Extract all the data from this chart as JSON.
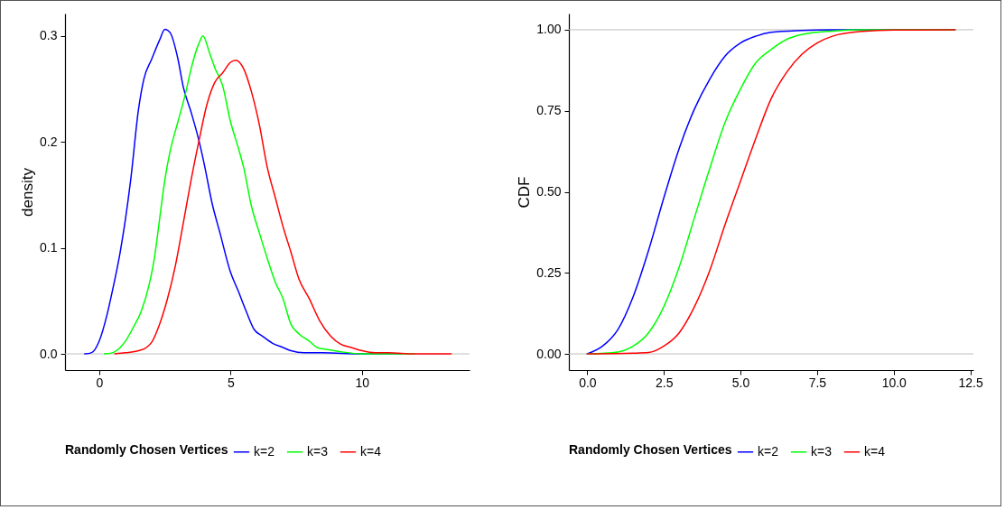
{
  "chart_data": [
    {
      "type": "line",
      "ylabel": "density",
      "legend_title": "Randomly Chosen Vertices",
      "legend": "bottom",
      "grid": false,
      "xlim": [
        -1.3,
        14.1
      ],
      "ylim": [
        -0.0153,
        0.321
      ],
      "xticks": [
        0,
        5,
        10
      ],
      "yticks": [
        {
          "value": 0,
          "label": "0.0"
        },
        0.1,
        0.2,
        0.3
      ],
      "ref_lines": [
        {
          "axis": "y",
          "value": 0,
          "color": "#bebebe"
        }
      ],
      "series": [
        {
          "name": "k=2",
          "color": "#0000ff",
          "x": [
            -0.55,
            -0.3,
            0,
            0.3,
            0.5,
            0.8,
            1.0,
            1.2,
            1.5,
            1.7,
            2.0,
            2.3,
            2.5,
            2.7,
            3.0,
            3.2,
            3.5,
            3.8,
            4.0,
            4.3,
            4.6,
            5.0,
            5.3,
            5.6,
            5.9,
            6.2,
            6.6,
            7.0,
            7.3,
            7.8,
            8.5,
            10,
            11.5
          ],
          "values": [
            0,
            0.001,
            0.012,
            0.037,
            0.059,
            0.096,
            0.127,
            0.164,
            0.231,
            0.259,
            0.278,
            0.296,
            0.306,
            0.303,
            0.278,
            0.252,
            0.228,
            0.201,
            0.179,
            0.142,
            0.114,
            0.077,
            0.059,
            0.04,
            0.023,
            0.017,
            0.01,
            0.006,
            0.003,
            0.001,
            0.001,
            0,
            0
          ]
        },
        {
          "name": "k=3",
          "color": "#00ff00",
          "x": [
            0.2,
            0.5,
            0.8,
            1.0,
            1.3,
            1.6,
            1.9,
            2.1,
            2.3,
            2.5,
            2.7,
            3.0,
            3.3,
            3.5,
            3.8,
            3.95,
            4.2,
            4.4,
            4.7,
            5.0,
            5.3,
            5.5,
            5.8,
            6.1,
            6.4,
            6.7,
            7.0,
            7.3,
            7.6,
            8.0,
            8.3,
            8.7,
            9.2,
            10,
            12
          ],
          "values": [
            0,
            0.001,
            0.006,
            0.012,
            0.025,
            0.04,
            0.065,
            0.09,
            0.127,
            0.164,
            0.191,
            0.219,
            0.247,
            0.269,
            0.293,
            0.3,
            0.284,
            0.27,
            0.253,
            0.219,
            0.194,
            0.176,
            0.139,
            0.114,
            0.09,
            0.068,
            0.052,
            0.028,
            0.019,
            0.012,
            0.006,
            0.004,
            0.002,
            0,
            0
          ]
        },
        {
          "name": "k=4",
          "color": "#ff0000",
          "x": [
            0.6,
            1.0,
            1.5,
            1.8,
            2.0,
            2.3,
            2.6,
            2.9,
            3.2,
            3.5,
            3.8,
            4.1,
            4.4,
            4.7,
            5.0,
            5.2,
            5.5,
            5.8,
            6.1,
            6.4,
            6.7,
            7.0,
            7.3,
            7.6,
            8.0,
            8.4,
            8.8,
            9.2,
            9.6,
            10.0,
            10.5,
            11,
            12,
            13.4
          ],
          "values": [
            0,
            0.001,
            0.003,
            0.006,
            0.011,
            0.028,
            0.052,
            0.083,
            0.123,
            0.164,
            0.201,
            0.235,
            0.256,
            0.265,
            0.275,
            0.277,
            0.269,
            0.247,
            0.216,
            0.176,
            0.148,
            0.12,
            0.096,
            0.071,
            0.052,
            0.031,
            0.017,
            0.009,
            0.006,
            0.003,
            0.001,
            0.001,
            0,
            0
          ]
        }
      ]
    },
    {
      "type": "line",
      "ylabel": "CDF",
      "legend_title": "Randomly Chosen Vertices",
      "legend": "bottom",
      "grid": false,
      "xlim": [
        -0.6,
        12.6
      ],
      "ylim": [
        -0.05,
        1.05
      ],
      "xticks": [
        {
          "value": 0,
          "label": "0.0"
        },
        2.5,
        {
          "value": 5,
          "label": "5.0"
        },
        7.5,
        {
          "value": 10,
          "label": "10.0"
        },
        12.5
      ],
      "yticks": [
        {
          "value": 0,
          "label": "0.00"
        },
        0.25,
        {
          "value": 0.5,
          "label": "0.50"
        },
        0.75,
        {
          "value": 1,
          "label": "1.00"
        }
      ],
      "ref_lines": [
        {
          "axis": "y",
          "value": 0,
          "color": "#bebebe"
        },
        {
          "axis": "y",
          "value": 1,
          "color": "#bebebe"
        }
      ],
      "series": [
        {
          "name": "k=2",
          "color": "#0000ff",
          "x": [
            0,
            0.5,
            1.0,
            1.5,
            2.0,
            2.5,
            3.0,
            3.5,
            4.0,
            4.5,
            5.0,
            5.5,
            6.0,
            7,
            8,
            12
          ],
          "values": [
            0,
            0.024,
            0.075,
            0.177,
            0.319,
            0.482,
            0.634,
            0.756,
            0.848,
            0.919,
            0.959,
            0.98,
            0.992,
            0.998,
            1,
            1
          ]
        },
        {
          "name": "k=3",
          "color": "#00ff00",
          "x": [
            0,
            1.0,
            1.5,
            2.0,
            2.5,
            3.0,
            3.5,
            4.0,
            4.5,
            5.0,
            5.5,
            6.0,
            6.5,
            7.0,
            8,
            9,
            12
          ],
          "values": [
            0,
            0.006,
            0.024,
            0.065,
            0.146,
            0.268,
            0.421,
            0.573,
            0.715,
            0.817,
            0.898,
            0.939,
            0.97,
            0.985,
            0.996,
            1,
            1
          ]
        },
        {
          "name": "k=4",
          "color": "#ff0000",
          "x": [
            0,
            1.5,
            2.0,
            2.5,
            3.0,
            3.5,
            4.0,
            4.5,
            5.0,
            5.5,
            6.0,
            6.5,
            7.0,
            7.5,
            8.0,
            9,
            10,
            12
          ],
          "values": [
            0,
            0.002,
            0.004,
            0.024,
            0.065,
            0.146,
            0.258,
            0.4,
            0.533,
            0.665,
            0.787,
            0.868,
            0.924,
            0.959,
            0.98,
            0.995,
            0.999,
            1
          ]
        }
      ]
    }
  ]
}
